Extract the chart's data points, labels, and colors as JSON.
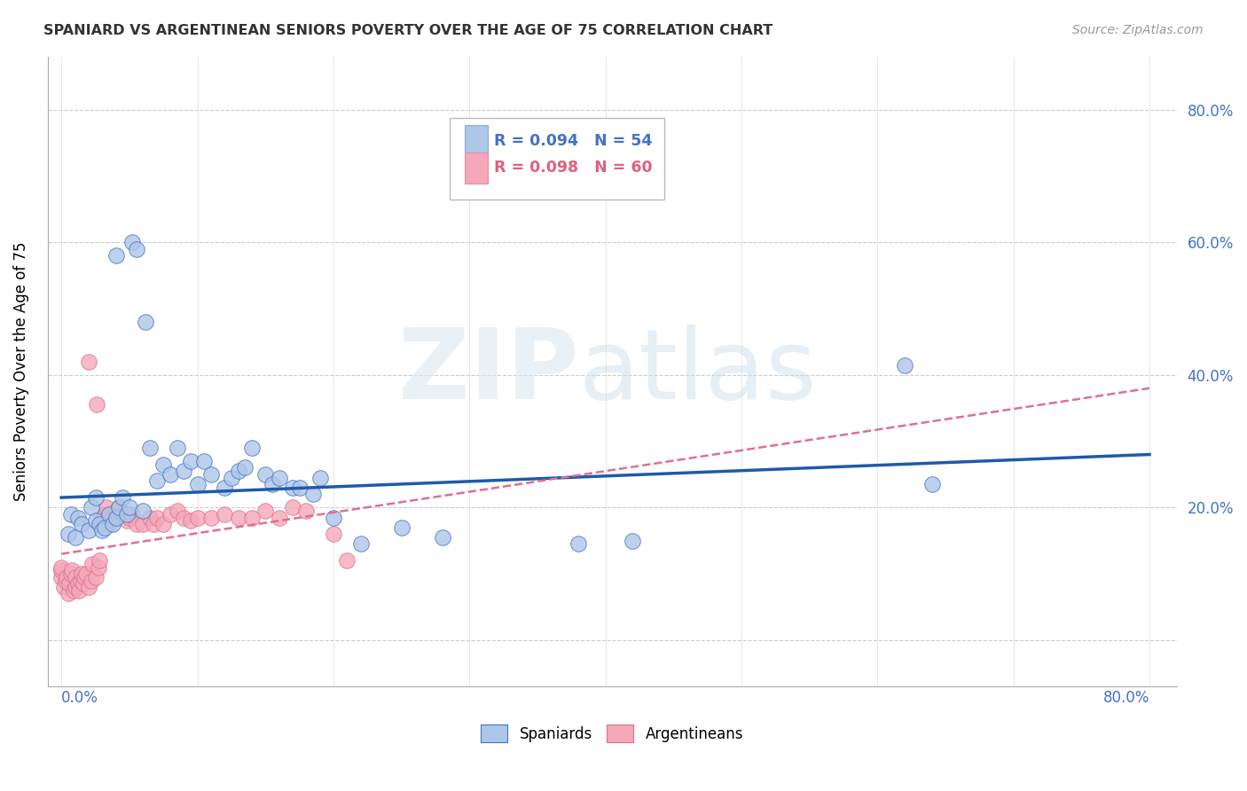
{
  "title": "SPANIARD VS ARGENTINEAN SENIORS POVERTY OVER THE AGE OF 75 CORRELATION CHART",
  "source": "Source: ZipAtlas.com",
  "ylabel": "Seniors Poverty Over the Age of 75",
  "spaniards_color": "#aec6e8",
  "argentineans_color": "#f4a8b8",
  "spaniards_edge_color": "#4472c4",
  "argentineans_edge_color": "#e07090",
  "spaniards_line_color": "#1f5aaa",
  "argentineans_line_color": "#e07090",
  "watermark_zip_color": "#d0dce8",
  "watermark_atlas_color": "#c8d8e8",
  "spaniards_x": [
    0.005,
    0.007,
    0.01,
    0.012,
    0.015,
    0.02,
    0.022,
    0.025,
    0.025,
    0.028,
    0.03,
    0.032,
    0.035,
    0.038,
    0.04,
    0.04,
    0.042,
    0.045,
    0.048,
    0.05,
    0.052,
    0.055,
    0.06,
    0.062,
    0.065,
    0.07,
    0.075,
    0.08,
    0.085,
    0.09,
    0.095,
    0.1,
    0.105,
    0.11,
    0.12,
    0.125,
    0.13,
    0.135,
    0.14,
    0.15,
    0.155,
    0.16,
    0.17,
    0.175,
    0.185,
    0.19,
    0.2,
    0.22,
    0.25,
    0.28,
    0.38,
    0.42,
    0.62,
    0.64
  ],
  "spaniards_y": [
    0.16,
    0.19,
    0.155,
    0.185,
    0.175,
    0.165,
    0.2,
    0.18,
    0.215,
    0.175,
    0.165,
    0.17,
    0.19,
    0.175,
    0.185,
    0.58,
    0.2,
    0.215,
    0.19,
    0.2,
    0.6,
    0.59,
    0.195,
    0.48,
    0.29,
    0.24,
    0.265,
    0.25,
    0.29,
    0.255,
    0.27,
    0.235,
    0.27,
    0.25,
    0.23,
    0.245,
    0.255,
    0.26,
    0.29,
    0.25,
    0.235,
    0.245,
    0.23,
    0.23,
    0.22,
    0.245,
    0.185,
    0.145,
    0.17,
    0.155,
    0.145,
    0.15,
    0.415,
    0.235
  ],
  "argentineans_x": [
    0.0,
    0.0,
    0.0,
    0.002,
    0.003,
    0.004,
    0.005,
    0.006,
    0.007,
    0.008,
    0.009,
    0.01,
    0.01,
    0.012,
    0.013,
    0.014,
    0.015,
    0.016,
    0.017,
    0.018,
    0.02,
    0.02,
    0.022,
    0.023,
    0.025,
    0.026,
    0.027,
    0.028,
    0.03,
    0.032,
    0.033,
    0.035,
    0.038,
    0.04,
    0.042,
    0.045,
    0.048,
    0.05,
    0.052,
    0.055,
    0.06,
    0.065,
    0.068,
    0.07,
    0.075,
    0.08,
    0.085,
    0.09,
    0.095,
    0.1,
    0.11,
    0.12,
    0.13,
    0.14,
    0.15,
    0.16,
    0.17,
    0.18,
    0.2,
    0.21
  ],
  "argentineans_y": [
    0.095,
    0.105,
    0.11,
    0.08,
    0.09,
    0.095,
    0.07,
    0.085,
    0.1,
    0.105,
    0.075,
    0.08,
    0.095,
    0.085,
    0.075,
    0.09,
    0.1,
    0.085,
    0.095,
    0.1,
    0.08,
    0.42,
    0.09,
    0.115,
    0.095,
    0.355,
    0.11,
    0.12,
    0.185,
    0.19,
    0.2,
    0.175,
    0.185,
    0.195,
    0.2,
    0.19,
    0.18,
    0.185,
    0.19,
    0.175,
    0.175,
    0.185,
    0.175,
    0.185,
    0.175,
    0.19,
    0.195,
    0.185,
    0.18,
    0.185,
    0.185,
    0.19,
    0.185,
    0.185,
    0.195,
    0.185,
    0.2,
    0.195,
    0.16,
    0.12
  ],
  "sp_line_x0": 0.0,
  "sp_line_y0": 0.215,
  "sp_line_x1": 0.8,
  "sp_line_y1": 0.28,
  "ar_line_x0": 0.0,
  "ar_line_y0": 0.13,
  "ar_line_x1": 0.8,
  "ar_line_y1": 0.38,
  "xlim": [
    -0.01,
    0.82
  ],
  "ylim": [
    -0.07,
    0.88
  ],
  "yticks": [
    0.0,
    0.2,
    0.4,
    0.6,
    0.8
  ],
  "ytick_labels": [
    "",
    "20.0%",
    "40.0%",
    "60.0%",
    "80.0%"
  ],
  "xticks": [
    0.0,
    0.1,
    0.2,
    0.3,
    0.4,
    0.5,
    0.6,
    0.7,
    0.8
  ],
  "grid_yticks": [
    0.0,
    0.2,
    0.4,
    0.6,
    0.8
  ],
  "grid_xticks": [
    0.0,
    0.1,
    0.2,
    0.3,
    0.4,
    0.5,
    0.6,
    0.7,
    0.8
  ]
}
